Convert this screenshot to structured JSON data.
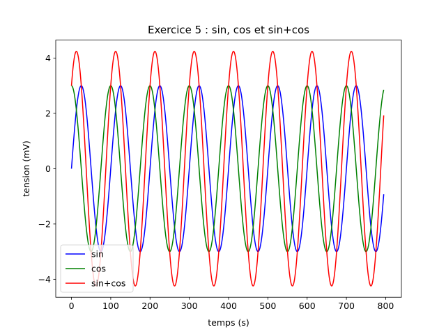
{
  "chart_data": {
    "type": "line",
    "title": "Exercice 5 : sin, cos et sin+cos",
    "xlabel": "temps (s)",
    "ylabel": "tension (mV)",
    "xlim": [
      -40,
      840
    ],
    "ylim": [
      -4.65,
      4.65
    ],
    "xticks": [
      0,
      100,
      200,
      300,
      400,
      500,
      600,
      700,
      800
    ],
    "yticks": [
      -4,
      -2,
      0,
      2,
      4
    ],
    "xtick_labels": [
      "0",
      "100",
      "200",
      "300",
      "400",
      "500",
      "600",
      "700",
      "800"
    ],
    "ytick_labels": [
      "−4",
      "−2",
      "0",
      "2",
      "4"
    ],
    "grid": false,
    "legend_position": "lower left",
    "amplitude": 3,
    "period": 100,
    "x_start": 0,
    "x_end": 795,
    "series": [
      {
        "name": "sin",
        "function": "3 sin(2πt/100)",
        "color": "#0000ff"
      },
      {
        "name": "cos",
        "function": "3 cos(2πt/100)",
        "color": "#008000"
      },
      {
        "name": "sin+cos",
        "function": "3 sin(2πt/100) + 3 cos(2πt/100)",
        "color": "#ff0000"
      }
    ]
  }
}
